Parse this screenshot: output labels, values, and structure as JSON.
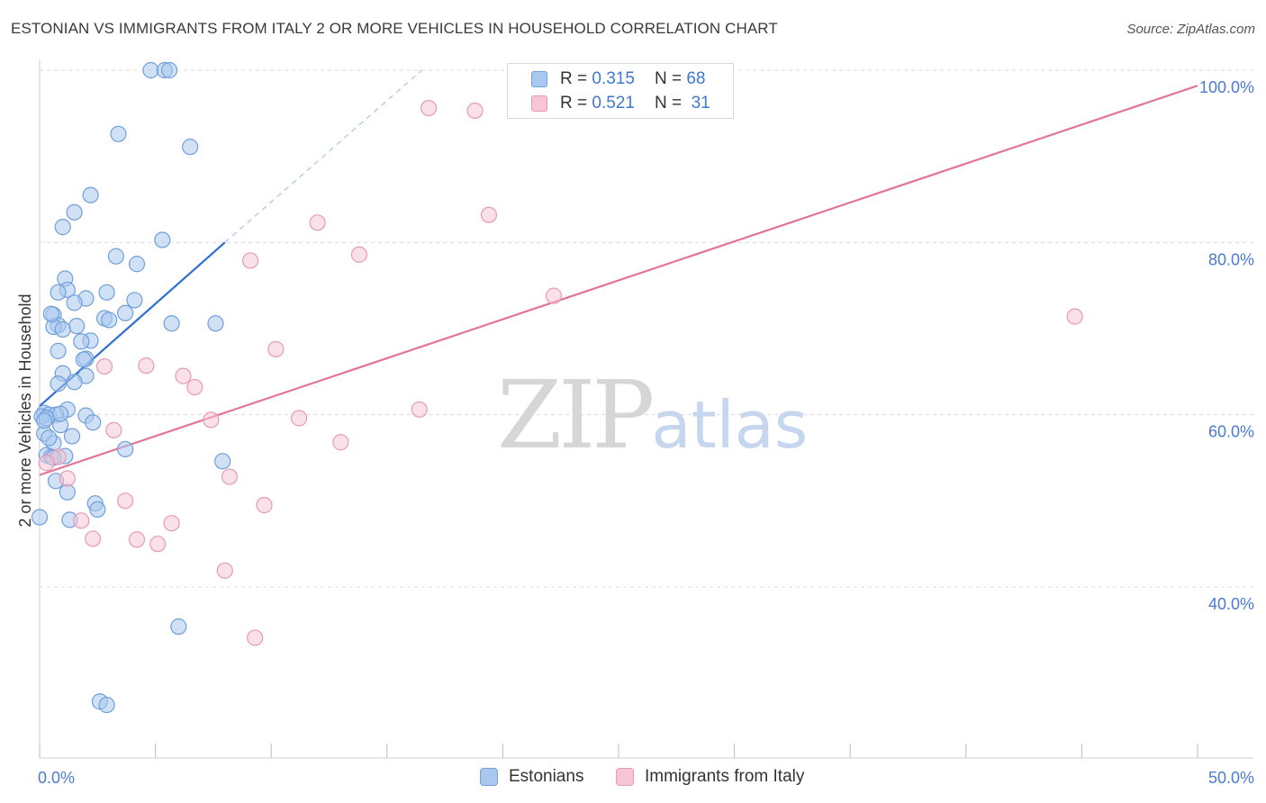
{
  "title": "ESTONIAN VS IMMIGRANTS FROM ITALY 2 OR MORE VEHICLES IN HOUSEHOLD CORRELATION CHART",
  "source": "Source: ZipAtlas.com",
  "watermark": {
    "zip": "ZIP",
    "atlas": "atlas"
  },
  "legend_top": [
    {
      "r_label": "R = ",
      "r_value": "0.315",
      "n_label": "N = ",
      "n_value": "68",
      "color": "#a9c8ef",
      "border": "#6f9fdc"
    },
    {
      "r_label": "R = ",
      "r_value": "0.521",
      "n_label": "N = ",
      "n_value": "31",
      "color": "#f6c6d5",
      "border": "#e89ab3"
    }
  ],
  "legend_bottom": [
    {
      "label": "Estonians",
      "color": "#a9c8ef",
      "border": "#6f9fdc"
    },
    {
      "label": "Immigrants from Italy",
      "color": "#f6c6d5",
      "border": "#e89ab3"
    }
  ],
  "chart_data": {
    "type": "scatter",
    "title": "ESTONIAN VS IMMIGRANTS FROM ITALY 2 OR MORE VEHICLES IN HOUSEHOLD CORRELATION CHART",
    "xlabel": "",
    "ylabel": "2 or more Vehicles in Household",
    "xlim": [
      0,
      50
    ],
    "ylim": [
      18,
      101
    ],
    "x_tick_labels": [
      {
        "value": 0,
        "label": "0.0%"
      },
      {
        "value": 50,
        "label": "50.0%"
      }
    ],
    "y_tick_labels": [
      {
        "value": 40,
        "label": "40.0%"
      },
      {
        "value": 60,
        "label": "60.0%"
      },
      {
        "value": 80,
        "label": "80.0%"
      },
      {
        "value": 100,
        "label": "100.0%"
      }
    ],
    "series": [
      {
        "name": "Estonians",
        "color": "#a9c8ef",
        "stroke": "#6f9fdc",
        "trend": {
          "x": [
            0.0,
            8.0
          ],
          "y": [
            61.0,
            80.0
          ],
          "color": "#2e6fcf",
          "dashed_extension": {
            "x": [
              8.0,
              16.5
            ],
            "y": [
              80.0,
              100.0
            ]
          }
        },
        "points": [
          [
            4.8,
            100.0
          ],
          [
            5.4,
            100.0
          ],
          [
            5.6,
            100.0
          ],
          [
            3.4,
            92.6
          ],
          [
            6.5,
            91.1
          ],
          [
            2.2,
            85.5
          ],
          [
            1.5,
            83.5
          ],
          [
            1.0,
            81.8
          ],
          [
            5.3,
            80.3
          ],
          [
            3.3,
            78.4
          ],
          [
            4.2,
            77.5
          ],
          [
            1.1,
            75.8
          ],
          [
            1.2,
            74.5
          ],
          [
            0.8,
            74.2
          ],
          [
            2.9,
            74.2
          ],
          [
            2.0,
            73.5
          ],
          [
            4.1,
            73.3
          ],
          [
            1.5,
            73.0
          ],
          [
            0.6,
            71.6
          ],
          [
            3.7,
            71.8
          ],
          [
            2.8,
            71.2
          ],
          [
            3.0,
            71.0
          ],
          [
            5.7,
            70.6
          ],
          [
            7.6,
            70.6
          ],
          [
            0.8,
            70.4
          ],
          [
            0.6,
            70.2
          ],
          [
            1.6,
            70.3
          ],
          [
            1.0,
            69.9
          ],
          [
            2.2,
            68.6
          ],
          [
            1.8,
            68.5
          ],
          [
            0.8,
            67.4
          ],
          [
            2.0,
            66.5
          ],
          [
            1.0,
            64.8
          ],
          [
            2.0,
            64.5
          ],
          [
            1.5,
            63.8
          ],
          [
            0.8,
            63.6
          ],
          [
            1.2,
            60.6
          ],
          [
            0.2,
            60.2
          ],
          [
            0.4,
            60.0
          ],
          [
            0.7,
            60.0
          ],
          [
            0.1,
            59.8
          ],
          [
            0.3,
            59.6
          ],
          [
            2.0,
            59.9
          ],
          [
            2.3,
            59.1
          ],
          [
            0.9,
            58.8
          ],
          [
            0.2,
            57.8
          ],
          [
            1.4,
            57.5
          ],
          [
            0.6,
            56.7
          ],
          [
            3.7,
            56.0
          ],
          [
            0.3,
            55.3
          ],
          [
            0.5,
            55.1
          ],
          [
            1.1,
            55.2
          ],
          [
            7.9,
            54.6
          ],
          [
            0.7,
            52.3
          ],
          [
            1.2,
            51.0
          ],
          [
            2.4,
            49.7
          ],
          [
            2.5,
            49.0
          ],
          [
            0.0,
            48.1
          ],
          [
            1.3,
            47.8
          ],
          [
            6.0,
            35.4
          ],
          [
            2.6,
            26.7
          ],
          [
            2.9,
            26.3
          ],
          [
            0.6,
            55.0
          ],
          [
            0.9,
            60.1
          ],
          [
            1.9,
            66.4
          ],
          [
            0.5,
            71.7
          ],
          [
            0.4,
            57.3
          ],
          [
            0.2,
            59.3
          ]
        ]
      },
      {
        "name": "Immigrants from Italy",
        "color": "#f6c6d5",
        "stroke": "#e89ab3",
        "trend": {
          "x": [
            0.0,
            50.0
          ],
          "y": [
            53.0,
            98.2
          ],
          "color": "#e37399"
        },
        "points": [
          [
            16.8,
            95.6
          ],
          [
            18.8,
            95.3
          ],
          [
            19.4,
            83.2
          ],
          [
            12.0,
            82.3
          ],
          [
            13.8,
            78.6
          ],
          [
            9.1,
            77.9
          ],
          [
            22.2,
            73.8
          ],
          [
            44.7,
            71.4
          ],
          [
            10.2,
            67.6
          ],
          [
            4.6,
            65.7
          ],
          [
            2.8,
            65.6
          ],
          [
            6.2,
            64.5
          ],
          [
            6.7,
            63.2
          ],
          [
            16.4,
            60.6
          ],
          [
            11.2,
            59.6
          ],
          [
            7.4,
            59.4
          ],
          [
            3.2,
            58.2
          ],
          [
            13.0,
            56.8
          ],
          [
            0.8,
            55.1
          ],
          [
            8.2,
            52.8
          ],
          [
            1.2,
            52.6
          ],
          [
            3.7,
            50.0
          ],
          [
            9.7,
            49.5
          ],
          [
            1.8,
            47.7
          ],
          [
            5.7,
            47.4
          ],
          [
            2.3,
            45.6
          ],
          [
            4.2,
            45.5
          ],
          [
            5.1,
            45.0
          ],
          [
            8.0,
            41.9
          ],
          [
            9.3,
            34.1
          ],
          [
            0.3,
            54.4
          ]
        ]
      }
    ]
  }
}
